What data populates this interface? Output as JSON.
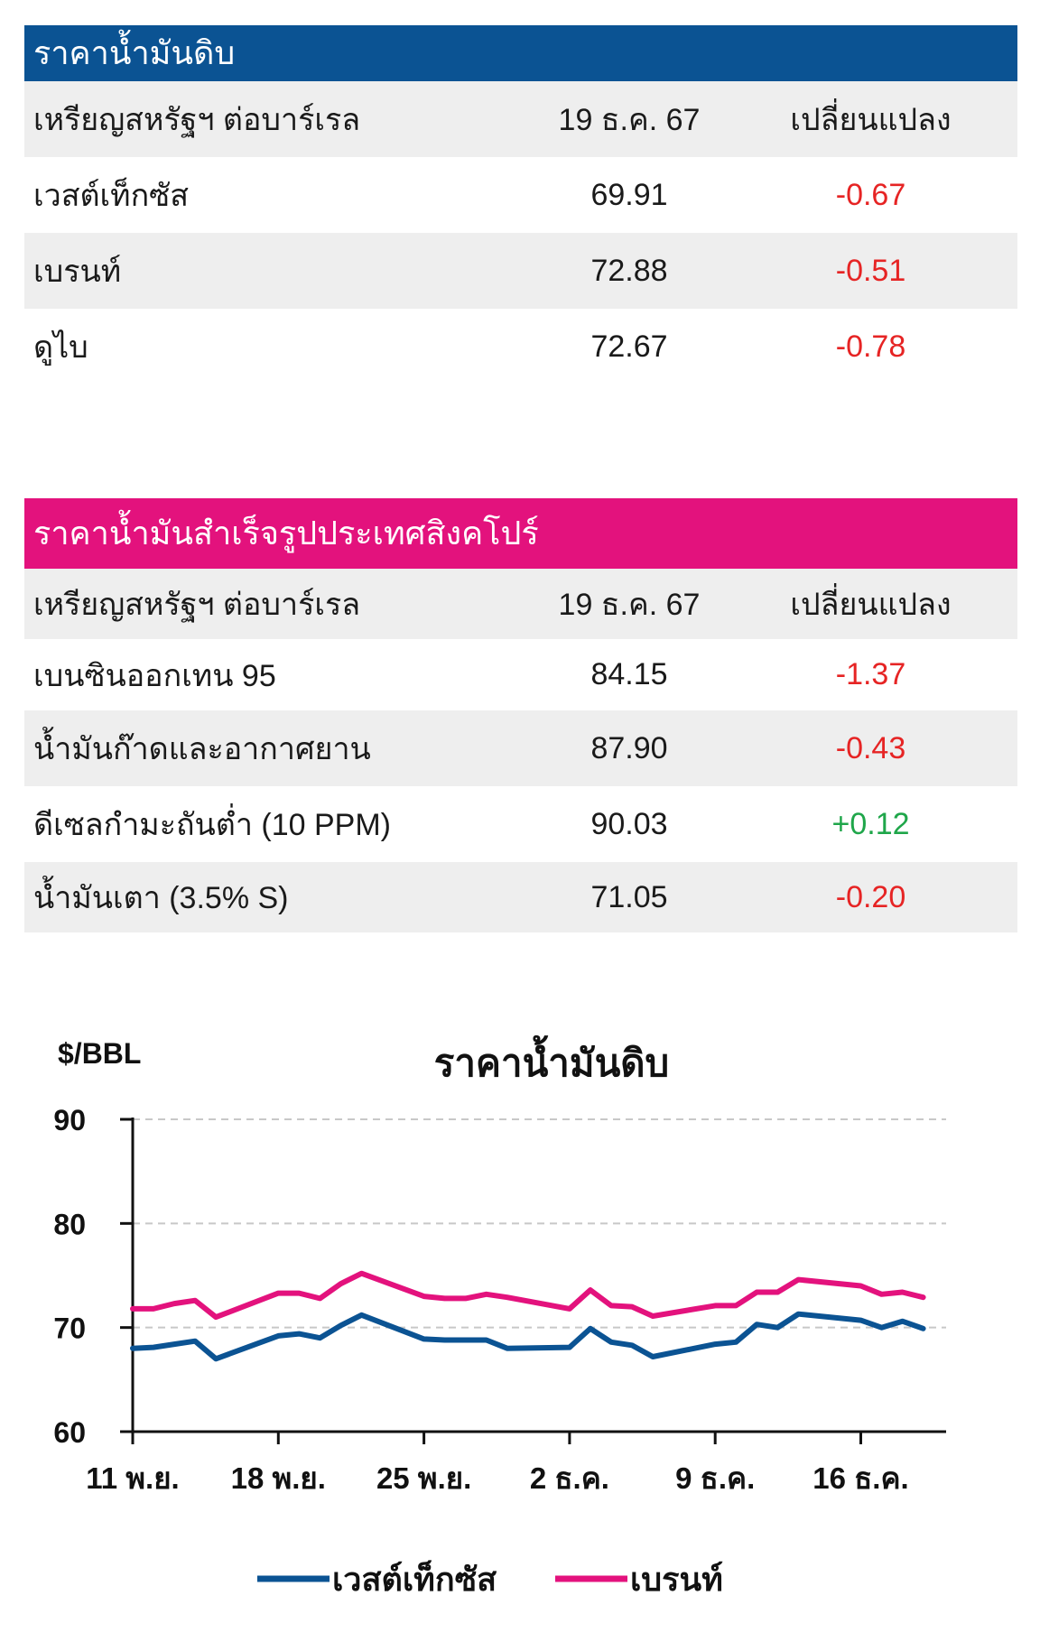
{
  "crude_table": {
    "title": "ราคาน้ำมันดิบ",
    "header": {
      "unit": "เหรียญสหรัฐฯ ต่อบาร์เรล",
      "date": "19 ธ.ค. 67",
      "change": "เปลี่ยนแปลง"
    },
    "rows": [
      {
        "name": "เวสต์เท็กซัส",
        "price": "69.91",
        "change": "-0.67"
      },
      {
        "name": "เบรนท์",
        "price": "72.88",
        "change": "-0.51"
      },
      {
        "name": "ดูไบ",
        "price": "72.67",
        "change": "-0.78"
      }
    ]
  },
  "singapore_table": {
    "title": "ราคาน้ำมันสำเร็จรูปประเทศสิงคโปร์",
    "header": {
      "unit": "เหรียญสหรัฐฯ ต่อบาร์เรล",
      "date": "19 ธ.ค. 67",
      "change": "เปลี่ยนแปลง"
    },
    "rows": [
      {
        "name": "เบนซินออกเทน 95",
        "price": "84.15",
        "change": "-1.37"
      },
      {
        "name": "น้ำมันก๊าดและอากาศยาน",
        "price": "87.90",
        "change": "-0.43"
      },
      {
        "name": "ดีเซลกำมะถันต่ำ (10 PPM)",
        "price": "90.03",
        "change": "+0.12"
      },
      {
        "name": "น้ำมันเตา (3.5% S)",
        "price": "71.05",
        "change": "-0.20"
      }
    ]
  },
  "colors": {
    "blue": "#0b5393",
    "pink": "#e3127d",
    "negative": "#e62424",
    "positive": "#1fa64a"
  },
  "chart_data": {
    "type": "line",
    "title": "ราคาน้ำมันดิบ",
    "ylabel": "$/BBL",
    "ylim": [
      60,
      90
    ],
    "yticks": [
      60,
      70,
      80,
      90
    ],
    "xticks": [
      "11 พ.ย.",
      "18 พ.ย.",
      "25 พ.ย.",
      "2 ธ.ค.",
      "9 ธ.ค.",
      "16 ธ.ค."
    ],
    "x": [
      "2024-11-11",
      "2024-11-12",
      "2024-11-13",
      "2024-11-14",
      "2024-11-15",
      "2024-11-18",
      "2024-11-19",
      "2024-11-20",
      "2024-11-21",
      "2024-11-22",
      "2024-11-25",
      "2024-11-26",
      "2024-11-27",
      "2024-11-28",
      "2024-11-29",
      "2024-12-02",
      "2024-12-03",
      "2024-12-04",
      "2024-12-05",
      "2024-12-06",
      "2024-12-09",
      "2024-12-10",
      "2024-12-11",
      "2024-12-12",
      "2024-12-13",
      "2024-12-16",
      "2024-12-17",
      "2024-12-18",
      "2024-12-19"
    ],
    "grid": true,
    "legend_position": "bottom",
    "series": [
      {
        "name": "เวสต์เท็กซัส",
        "color": "#0b5393",
        "values": [
          68.0,
          68.1,
          68.4,
          68.7,
          67.0,
          69.2,
          69.4,
          69.0,
          70.2,
          71.2,
          68.9,
          68.8,
          68.8,
          68.8,
          68.0,
          68.1,
          69.9,
          68.6,
          68.3,
          67.2,
          68.4,
          68.6,
          70.3,
          70.0,
          71.3,
          70.7,
          70.0,
          70.6,
          69.9
        ]
      },
      {
        "name": "เบรนท์",
        "color": "#e3127d",
        "values": [
          71.8,
          71.8,
          72.3,
          72.6,
          71.0,
          73.3,
          73.3,
          72.8,
          74.2,
          75.2,
          73.0,
          72.8,
          72.8,
          73.2,
          72.9,
          71.8,
          73.6,
          72.1,
          72.0,
          71.1,
          72.1,
          72.1,
          73.4,
          73.4,
          74.6,
          74.0,
          73.2,
          73.4,
          72.9
        ]
      }
    ]
  }
}
